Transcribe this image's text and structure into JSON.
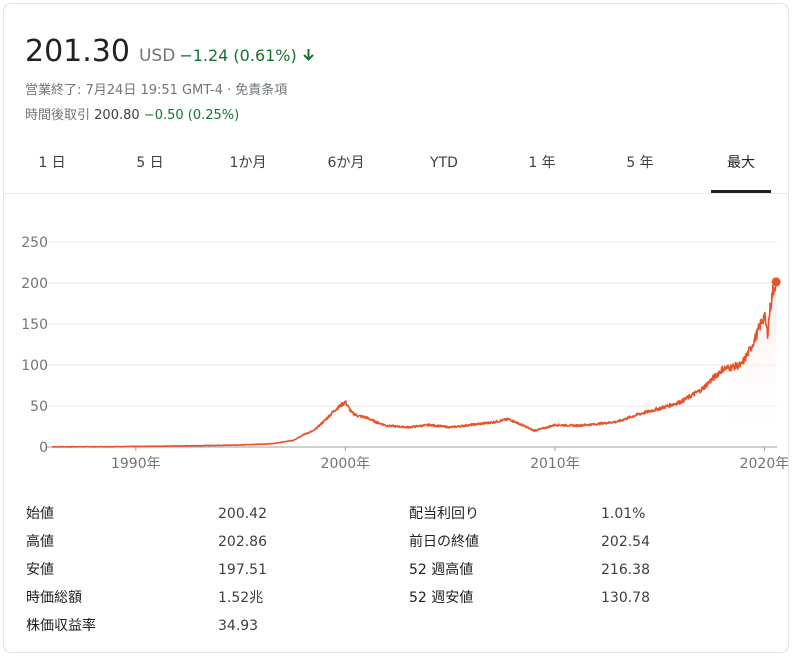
{
  "quote": {
    "price": "201.30",
    "currency": "USD",
    "change": "−1.24 (0.61%)",
    "arrow_icon": "arrow-down-icon",
    "status_label": "営業終了: 7月24日 19:51 GMT-4",
    "disclaimer": "免責条項",
    "after_hours_label": "時間後取引",
    "after_hours_price": "200.80",
    "after_hours_change": "−0.50 (0.25%)",
    "accent_color": "#137333"
  },
  "tabs": [
    {
      "label": "1 日"
    },
    {
      "label": "5 日"
    },
    {
      "label": "1か月"
    },
    {
      "label": "6か月"
    },
    {
      "label": "YTD"
    },
    {
      "label": "1 年"
    },
    {
      "label": "5 年"
    },
    {
      "label": "最大",
      "active": true
    }
  ],
  "chart_data": {
    "type": "area",
    "x": [
      1986,
      1989,
      1992,
      1995,
      1996.5,
      1997.5,
      1998,
      1998.5,
      1999,
      1999.5,
      2000,
      2000.3,
      2000.6,
      2001,
      2001.5,
      2002,
      2003,
      2004,
      2005,
      2006,
      2007,
      2007.8,
      2008.5,
      2009,
      2009.5,
      2010,
      2011,
      2012,
      2013,
      2014,
      2015,
      2016,
      2017,
      2018,
      2018.9,
      2019.3,
      2019.6,
      2019.9,
      2020.0,
      2020.15,
      2020.25,
      2020.4,
      2020.56
    ],
    "values": [
      0.1,
      0.4,
      1.2,
      2.5,
      4,
      8,
      15,
      20,
      32,
      45,
      55,
      42,
      38,
      36,
      30,
      26,
      24,
      27,
      24,
      27,
      30,
      34,
      26,
      20,
      23,
      27,
      26,
      28,
      31,
      40,
      47,
      55,
      70,
      95,
      100,
      118,
      135,
      155,
      160,
      138,
      165,
      190,
      201.3
    ],
    "ylim": [
      0,
      250
    ],
    "yticks": [
      "0",
      "50",
      "100",
      "150",
      "200",
      "250"
    ],
    "xticks": [
      "1990年",
      "2000年",
      "2010年",
      "2020年"
    ],
    "line_color": "#e8542a",
    "grid": true
  },
  "stats": {
    "left": [
      {
        "label": "始値",
        "value": "200.42"
      },
      {
        "label": "高値",
        "value": "202.86"
      },
      {
        "label": "安値",
        "value": "197.51"
      },
      {
        "label": "時価総額",
        "value": "1.52兆"
      },
      {
        "label": "株価収益率",
        "value": "34.93"
      }
    ],
    "right": [
      {
        "label": "配当利回り",
        "value": "1.01%"
      },
      {
        "label": "前日の終値",
        "value": "202.54"
      },
      {
        "label": "52 週高値",
        "value": "216.38"
      },
      {
        "label": "52 週安値",
        "value": "130.78"
      }
    ]
  }
}
